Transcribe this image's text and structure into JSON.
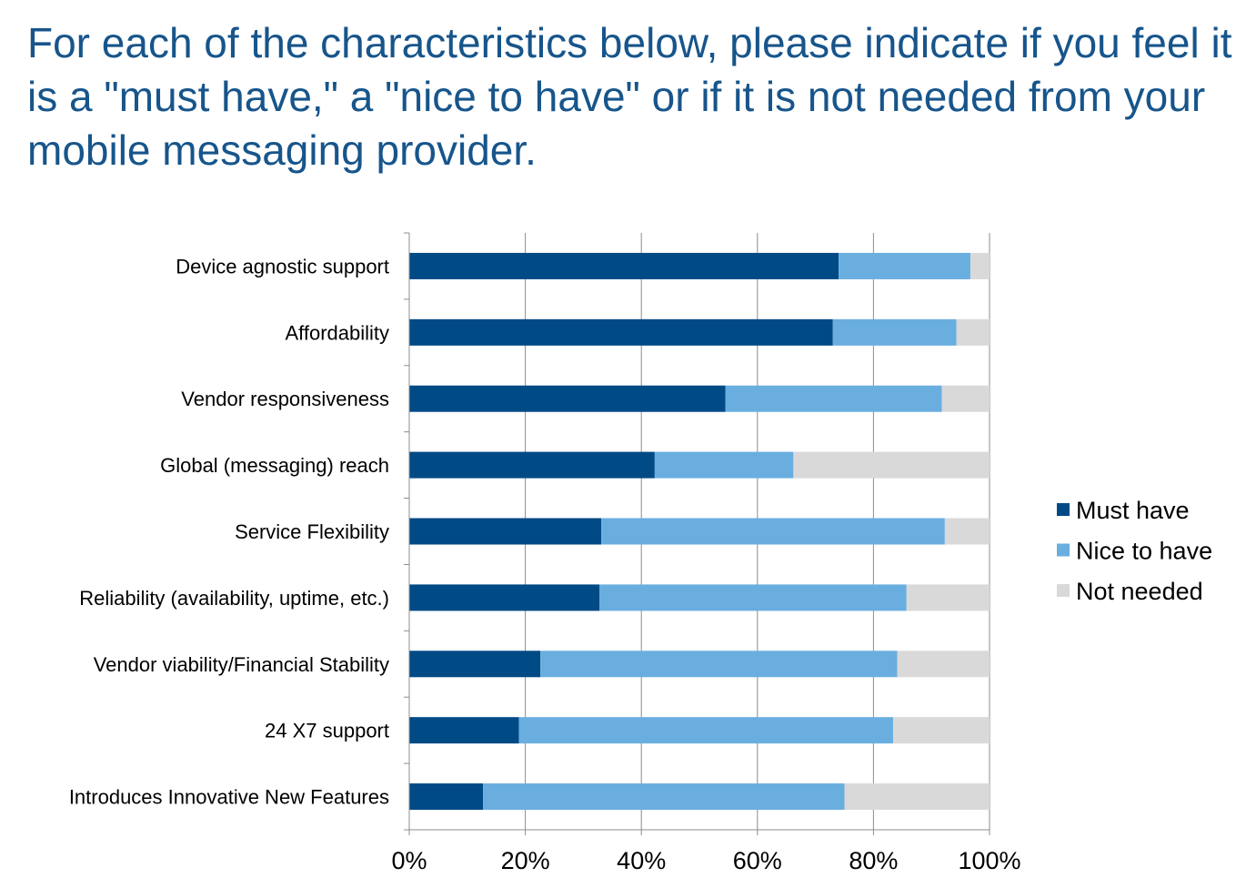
{
  "title": "For each of the characteristics below, please indicate if you feel it is a \"must have,\"  a \"nice to have\" or if it is not needed from your mobile messaging provider.",
  "chart_data": {
    "type": "bar",
    "orientation": "horizontal",
    "stacked": "percent",
    "categories": [
      "Device agnostic support",
      "Affordability",
      "Vendor responsiveness",
      "Global (messaging) reach",
      "Service Flexibility",
      "Reliability (availability, uptime, etc.)",
      "Vendor viability/Financial Stability",
      "24 X7 support",
      "Introduces Innovative New Features"
    ],
    "series": [
      {
        "name": "Must have",
        "color": "#004a86",
        "values": [
          74,
          73,
          54.5,
          42.3,
          33.1,
          32.8,
          22.6,
          18.9,
          12.7
        ]
      },
      {
        "name": "Nice to have",
        "color": "#6aaee0",
        "values": [
          22.7,
          21.3,
          37.3,
          23.9,
          59.2,
          52.9,
          61.5,
          64.5,
          62.3
        ]
      },
      {
        "name": "Not needed",
        "color": "#d9d9d9",
        "values": [
          3.3,
          5.7,
          8.2,
          33.8,
          7.7,
          14.3,
          15.9,
          16.6,
          25
        ]
      }
    ],
    "xlim": [
      0,
      100
    ],
    "xticks": [
      "0%",
      "20%",
      "40%",
      "60%",
      "80%",
      "100%"
    ],
    "xlabel": "",
    "ylabel": "",
    "grid": true,
    "legend_position": "right"
  }
}
